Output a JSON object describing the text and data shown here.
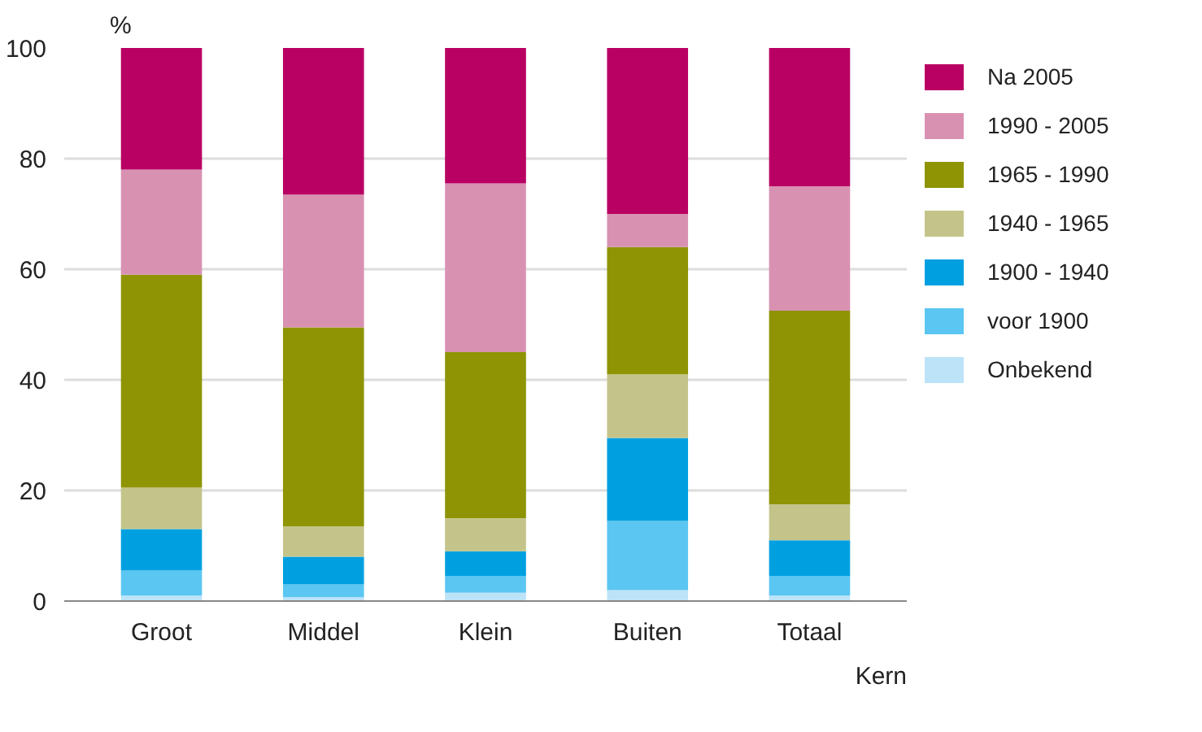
{
  "chart_data": {
    "type": "bar",
    "stacked": true,
    "ylabel": "%",
    "xlabel": "Kern",
    "categories": [
      "Groot",
      "Middel",
      "Klein",
      "Buiten",
      "Totaal"
    ],
    "ylim": [
      0,
      100
    ],
    "yticks": [
      0,
      20,
      40,
      60,
      80,
      100
    ],
    "grid": "y",
    "legend": "right",
    "series": [
      {
        "name": "Onbekend",
        "color": "#bde3f8",
        "values": [
          1,
          0.7,
          1.5,
          2,
          1
        ]
      },
      {
        "name": "voor 1900",
        "color": "#5bc6f2",
        "values": [
          4.5,
          2.3,
          3,
          12.5,
          3.5
        ]
      },
      {
        "name": "1900 - 1940",
        "color": "#00a0e0",
        "values": [
          7.5,
          5,
          4.5,
          15,
          6.5
        ]
      },
      {
        "name": "1940 - 1965",
        "color": "#c4c48a",
        "values": [
          7.5,
          5.5,
          6,
          11.5,
          6.5
        ]
      },
      {
        "name": "1965 - 1990",
        "color": "#8e9404",
        "values": [
          38.5,
          36,
          30,
          23,
          35
        ]
      },
      {
        "name": "1990 - 2005",
        "color": "#d991b2",
        "values": [
          19,
          24,
          30.5,
          6,
          22.5
        ]
      },
      {
        "name": "Na 2005",
        "color": "#b90063",
        "values": [
          22,
          26.5,
          24.5,
          30,
          25
        ]
      }
    ]
  }
}
